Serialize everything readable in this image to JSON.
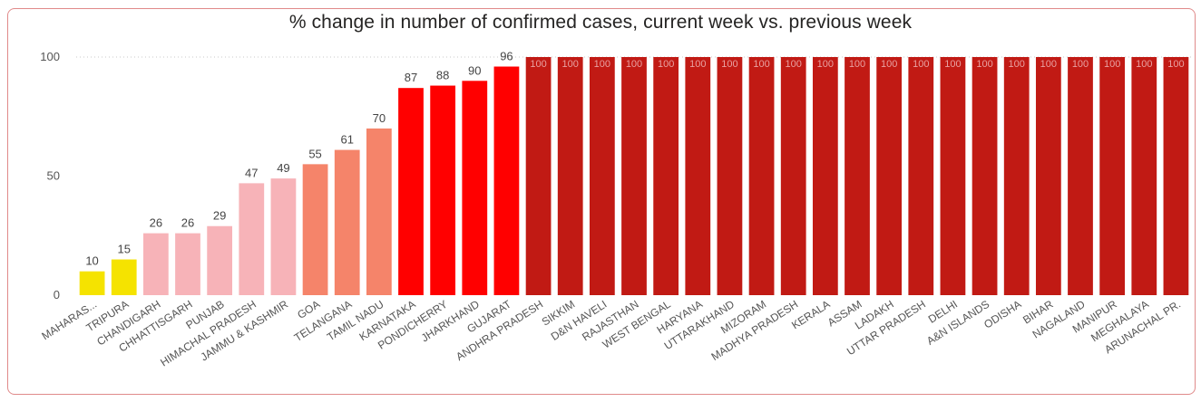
{
  "chart_data": {
    "type": "bar",
    "title": "% change in number of confirmed cases, current week vs. previous week",
    "xlabel": "",
    "ylabel": "",
    "ylim": [
      0,
      100
    ],
    "yticks": [
      0,
      50,
      100
    ],
    "grid": "dotted at 100",
    "categories": [
      "MAHARAS...",
      "TRIPURA",
      "CHANDIGARH",
      "CHHATTISGARH",
      "PUNJAB",
      "HIMACHAL PRADESH",
      "JAMMU & KASHMIR",
      "GOA",
      "TELANGANA",
      "TAMIL NADU",
      "KARNATAKA",
      "PONDICHERRY",
      "JHARKHAND",
      "GUJARAT",
      "ANDHRA PRADESH",
      "SIKKIM",
      "D&N HAVELI",
      "RAJASTHAN",
      "WEST BENGAL",
      "HARYANA",
      "UTTARAKHAND",
      "MIZORAM",
      "MADHYA PRADESH",
      "KERALA",
      "ASSAM",
      "LADAKH",
      "UTTAR PRADESH",
      "DELHI",
      "A&N ISLANDS",
      "ODISHA",
      "BIHAR",
      "NAGALAND",
      "MANIPUR",
      "MEGHALAYA",
      "ARUNACHAL PR."
    ],
    "values": [
      10,
      15,
      26,
      26,
      29,
      47,
      49,
      55,
      61,
      70,
      87,
      88,
      90,
      96,
      100,
      100,
      100,
      100,
      100,
      100,
      100,
      100,
      100,
      100,
      100,
      100,
      100,
      100,
      100,
      100,
      100,
      100,
      100,
      100,
      100
    ],
    "data_labels": [
      "10",
      "15",
      "26",
      "26",
      "29",
      "47",
      "49",
      "55",
      "61",
      "70",
      "87",
      "88",
      "90",
      "96",
      "100",
      "100",
      "100",
      "100",
      "100",
      "100",
      "100",
      "100",
      "100",
      "100",
      "100",
      "100",
      "100",
      "100",
      "100",
      "100",
      "100",
      "100",
      "100",
      "100",
      "100"
    ],
    "colors": [
      "#f5e300",
      "#f5e300",
      "#f7b3b8",
      "#f7b3b8",
      "#f7b3b8",
      "#f7b3b8",
      "#f7b3b8",
      "#f5846a",
      "#f5846a",
      "#f5846a",
      "#ff0000",
      "#ff0000",
      "#ff0000",
      "#ff0000",
      "#c11a14",
      "#c11a14",
      "#c11a14",
      "#c11a14",
      "#c11a14",
      "#c11a14",
      "#c11a14",
      "#c11a14",
      "#c11a14",
      "#c11a14",
      "#c11a14",
      "#c11a14",
      "#c11a14",
      "#c11a14",
      "#c11a14",
      "#c11a14",
      "#c11a14",
      "#c11a14",
      "#c11a14",
      "#c11a14",
      "#c11a14"
    ]
  }
}
